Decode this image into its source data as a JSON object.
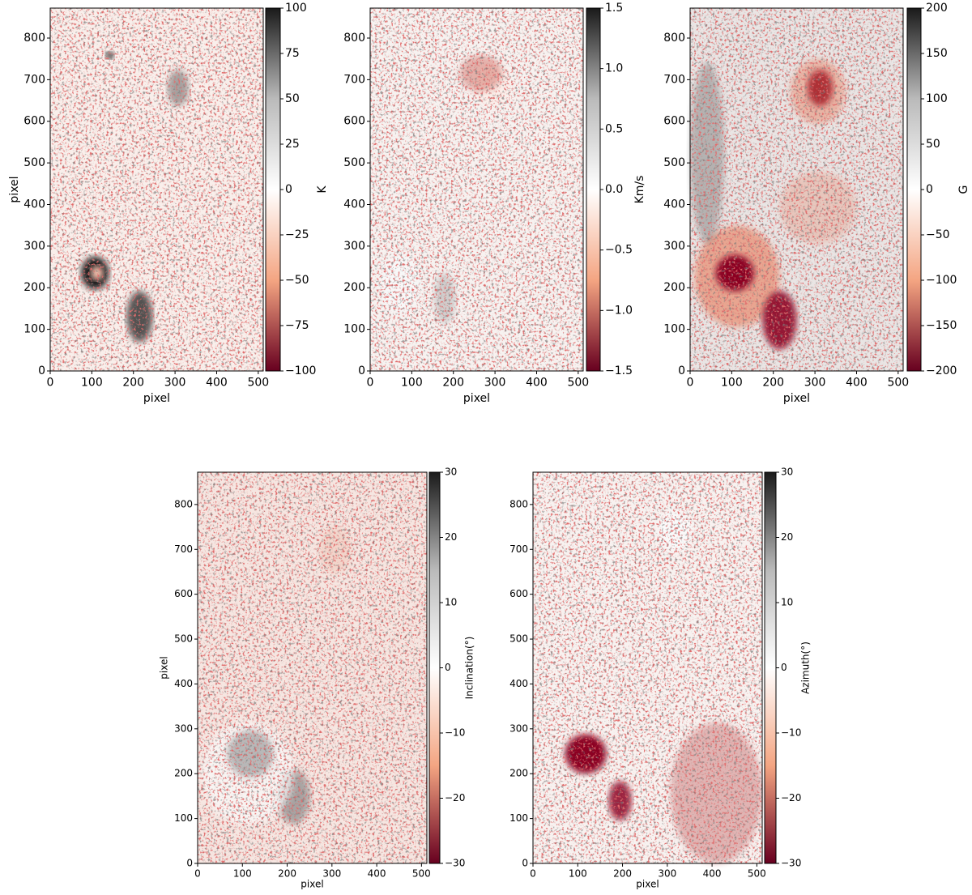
{
  "chart_data": [
    {
      "type": "heatmap",
      "xlabel": "pixel",
      "ylabel": "pixel",
      "xlim": [
        0,
        512
      ],
      "ylim": [
        0,
        872
      ],
      "xticks": [
        0,
        100,
        200,
        300,
        400,
        500
      ],
      "yticks": [
        0,
        100,
        200,
        300,
        400,
        500,
        600,
        700,
        800
      ],
      "colors": [
        "#67001f",
        "#f4a582",
        "#ffffff",
        "#bababa",
        "#1a1a1a"
      ],
      "colorbar": {
        "label": "K",
        "lim": [
          -100,
          100
        ],
        "ticks": [
          {
            "value": -100,
            "label": "−100"
          },
          {
            "value": -75,
            "label": "−75"
          },
          {
            "value": -50,
            "label": "−50"
          },
          {
            "value": -25,
            "label": "−25"
          },
          0,
          25,
          50,
          75,
          100
        ]
      }
    },
    {
      "type": "heatmap",
      "xlabel": "pixel",
      "xlim": [
        0,
        512
      ],
      "ylim": [
        0,
        872
      ],
      "xticks": [
        0,
        100,
        200,
        300,
        400,
        500
      ],
      "yticks": [
        0,
        100,
        200,
        300,
        400,
        500,
        600,
        700,
        800
      ],
      "colors": [
        "#67001f",
        "#f4a582",
        "#ffffff",
        "#bababa",
        "#1a1a1a"
      ],
      "colorbar": {
        "label": "Km/s",
        "lim": [
          -1.5,
          1.5
        ],
        "ticks": [
          {
            "value": -1.5,
            "label": "−1.5"
          },
          {
            "value": -1.0,
            "label": "−1.0"
          },
          {
            "value": -0.5,
            "label": "−0.5"
          },
          {
            "value": 0,
            "label": "0.0"
          },
          0.5,
          {
            "value": 1.0,
            "label": "1.0"
          },
          1.5
        ]
      }
    },
    {
      "type": "heatmap",
      "xlabel": "pixel",
      "xlim": [
        0,
        512
      ],
      "ylim": [
        0,
        872
      ],
      "xticks": [
        0,
        100,
        200,
        300,
        400,
        500
      ],
      "yticks": [
        0,
        100,
        200,
        300,
        400,
        500,
        600,
        700,
        800
      ],
      "colors": [
        "#67001f",
        "#f4a582",
        "#ffffff",
        "#bababa",
        "#1a1a1a"
      ],
      "colorbar": {
        "label": "G",
        "lim": [
          -200,
          200
        ],
        "ticks": [
          {
            "value": -200,
            "label": "−200"
          },
          {
            "value": -150,
            "label": "−150"
          },
          {
            "value": -100,
            "label": "−100"
          },
          {
            "value": -50,
            "label": "−50"
          },
          0,
          50,
          100,
          150,
          200
        ]
      }
    },
    {
      "type": "heatmap",
      "xlabel": "pixel",
      "ylabel": "pixel",
      "xlim": [
        0,
        512
      ],
      "ylim": [
        0,
        872
      ],
      "xticks": [
        0,
        100,
        200,
        300,
        400,
        500
      ],
      "yticks": [
        0,
        100,
        200,
        300,
        400,
        500,
        600,
        700,
        800
      ],
      "colors": [
        "#67001f",
        "#f4a582",
        "#ffffff",
        "#bababa",
        "#1a1a1a"
      ],
      "colorbar": {
        "label": "Inclination(°)",
        "lim": [
          -30,
          30
        ],
        "ticks": [
          {
            "value": -30,
            "label": "−30"
          },
          {
            "value": -20,
            "label": "−20"
          },
          {
            "value": -10,
            "label": "−10"
          },
          0,
          10,
          20,
          30
        ]
      }
    },
    {
      "type": "heatmap",
      "xlabel": "pixel",
      "xlim": [
        0,
        512
      ],
      "ylim": [
        0,
        872
      ],
      "xticks": [
        0,
        100,
        200,
        300,
        400,
        500
      ],
      "yticks": [
        0,
        100,
        200,
        300,
        400,
        500,
        600,
        700,
        800
      ],
      "colors": [
        "#67001f",
        "#f4a582",
        "#ffffff",
        "#bababa",
        "#1a1a1a"
      ],
      "colorbar": {
        "label": "Azimuth(°)",
        "lim": [
          -30,
          30
        ],
        "ticks": [
          {
            "value": -30,
            "label": "−30"
          },
          {
            "value": -20,
            "label": "−20"
          },
          {
            "value": -10,
            "label": "−10"
          },
          0,
          10,
          20,
          30
        ]
      }
    }
  ]
}
